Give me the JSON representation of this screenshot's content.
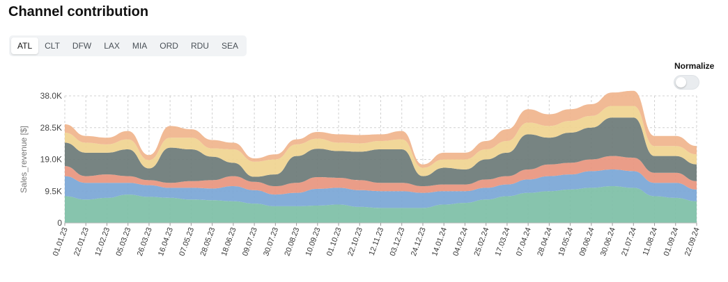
{
  "header": {
    "title": "Channel contribution"
  },
  "tabs": [
    {
      "label": "ATL",
      "active": true
    },
    {
      "label": "CLT",
      "active": false
    },
    {
      "label": "DFW",
      "active": false
    },
    {
      "label": "LAX",
      "active": false
    },
    {
      "label": "MIA",
      "active": false
    },
    {
      "label": "ORD",
      "active": false
    },
    {
      "label": "RDU",
      "active": false
    },
    {
      "label": "SEA",
      "active": false
    }
  ],
  "normalize": {
    "label": "Normalize",
    "on": false
  },
  "chart_data": {
    "type": "area",
    "stacked": true,
    "title": "",
    "xlabel": "",
    "ylabel": "Sales_revenue [$]",
    "ylim": [
      0,
      38000
    ],
    "yticks": [
      0,
      9500,
      19000,
      28500,
      38000
    ],
    "ytick_labels": [
      "0",
      "9.5K",
      "19.0K",
      "28.5K",
      "38.0K"
    ],
    "x_range": [
      "2023-01-01",
      "2024-09-22"
    ],
    "xtick_labels": [
      "01.01.23",
      "22.01.23",
      "12.02.23",
      "05.03.23",
      "26.03.23",
      "16.04.23",
      "07.05.23",
      "28.05.23",
      "18.06.23",
      "09.07.23",
      "30.07.23",
      "20.08.23",
      "10.09.23",
      "01.10.23",
      "22.10.23",
      "12.11.23",
      "03.12.23",
      "24.12.23",
      "14.01.24",
      "04.02.24",
      "25.02.24",
      "17.03.24",
      "07.04.24",
      "28.04.24",
      "19.05.24",
      "09.06.24",
      "30.06.24",
      "21.07.24",
      "11.08.24",
      "01.09.24",
      "22.09.24"
    ],
    "grid": true,
    "legend": "none",
    "x": [
      "2023-01-01",
      "2023-01-22",
      "2023-02-12",
      "2023-03-05",
      "2023-03-26",
      "2023-04-16",
      "2023-05-07",
      "2023-05-28",
      "2023-06-18",
      "2023-07-09",
      "2023-07-30",
      "2023-08-20",
      "2023-09-10",
      "2023-10-01",
      "2023-10-22",
      "2023-11-12",
      "2023-12-03",
      "2023-12-24",
      "2024-01-14",
      "2024-02-04",
      "2024-02-25",
      "2024-03-17",
      "2024-04-07",
      "2024-04-28",
      "2024-05-19",
      "2024-06-09",
      "2024-06-30",
      "2024-07-21",
      "2024-08-11",
      "2024-09-01",
      "2024-09-22"
    ],
    "series": [
      {
        "color": "#7dbfa6",
        "values": [
          8000,
          7000,
          7500,
          8500,
          7800,
          7500,
          7000,
          6800,
          6500,
          5800,
          5000,
          5000,
          5200,
          5500,
          4800,
          4500,
          4500,
          4500,
          5500,
          6000,
          7000,
          8000,
          9000,
          9500,
          10000,
          10500,
          11000,
          10500,
          8000,
          7500,
          6500
        ]
      },
      {
        "color": "#7aa6d6",
        "values": [
          6000,
          5000,
          4500,
          3500,
          3500,
          3000,
          3500,
          3500,
          4500,
          4000,
          3500,
          4000,
          5000,
          5000,
          5000,
          5000,
          5000,
          4500,
          4000,
          3500,
          3500,
          3500,
          4000,
          4500,
          4500,
          5000,
          5000,
          5000,
          4000,
          4500,
          3500
        ]
      },
      {
        "color": "#e8957e",
        "values": [
          3000,
          2000,
          2500,
          2000,
          1500,
          1500,
          2000,
          2500,
          3000,
          2500,
          2500,
          3000,
          3500,
          3000,
          3000,
          2500,
          2500,
          2000,
          2000,
          2000,
          2500,
          2500,
          3000,
          3500,
          3500,
          3500,
          4000,
          4000,
          3000,
          3000,
          2500
        ]
      },
      {
        "color": "#6b7a77",
        "values": [
          7000,
          7000,
          6500,
          8000,
          3500,
          10500,
          9500,
          7000,
          4000,
          1500,
          3500,
          8000,
          8500,
          8000,
          8500,
          10000,
          10000,
          3000,
          5000,
          4500,
          6000,
          7000,
          10500,
          8000,
          9000,
          9500,
          11500,
          12000,
          5000,
          5000,
          5000
        ]
      },
      {
        "color": "#f0d490",
        "values": [
          3000,
          3000,
          2500,
          3000,
          2500,
          3000,
          3500,
          2500,
          4000,
          4500,
          4500,
          3500,
          3000,
          2500,
          2500,
          2500,
          3000,
          2500,
          2500,
          3000,
          3000,
          3500,
          3500,
          3500,
          3500,
          3500,
          3500,
          3500,
          3000,
          3000,
          3000
        ]
      },
      {
        "color": "#f0b48c",
        "values": [
          2500,
          2000,
          2000,
          2500,
          1500,
          3500,
          2500,
          2500,
          2000,
          1000,
          1500,
          1500,
          2000,
          2500,
          2500,
          2000,
          2500,
          1000,
          2000,
          2000,
          2500,
          3500,
          4000,
          3500,
          3500,
          3500,
          4000,
          4500,
          3000,
          3000,
          2500
        ]
      }
    ]
  }
}
